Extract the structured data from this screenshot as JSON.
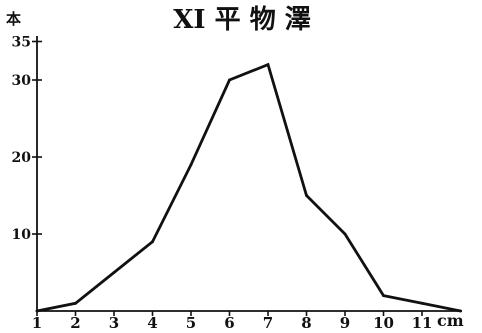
{
  "chart_data": {
    "type": "line",
    "title": "XI 平 物 澤",
    "ylabel": "本",
    "xlabel": "cm",
    "x": [
      1,
      2,
      3,
      4,
      5,
      6,
      7,
      8,
      9,
      10,
      11,
      12
    ],
    "series": [
      {
        "values": [
          0,
          1,
          5,
          9,
          19,
          30,
          32,
          15,
          10,
          2,
          1,
          0
        ]
      }
    ],
    "x_ticks": [
      "1",
      "2",
      "3",
      "4",
      "5",
      "6",
      "7",
      "8",
      "9",
      "10",
      "11"
    ],
    "y_ticks": [
      "10",
      "20",
      "30",
      "35"
    ],
    "xlim": [
      1,
      12
    ],
    "ylim": [
      0,
      35
    ],
    "grid": false,
    "line_color": "#111111"
  }
}
